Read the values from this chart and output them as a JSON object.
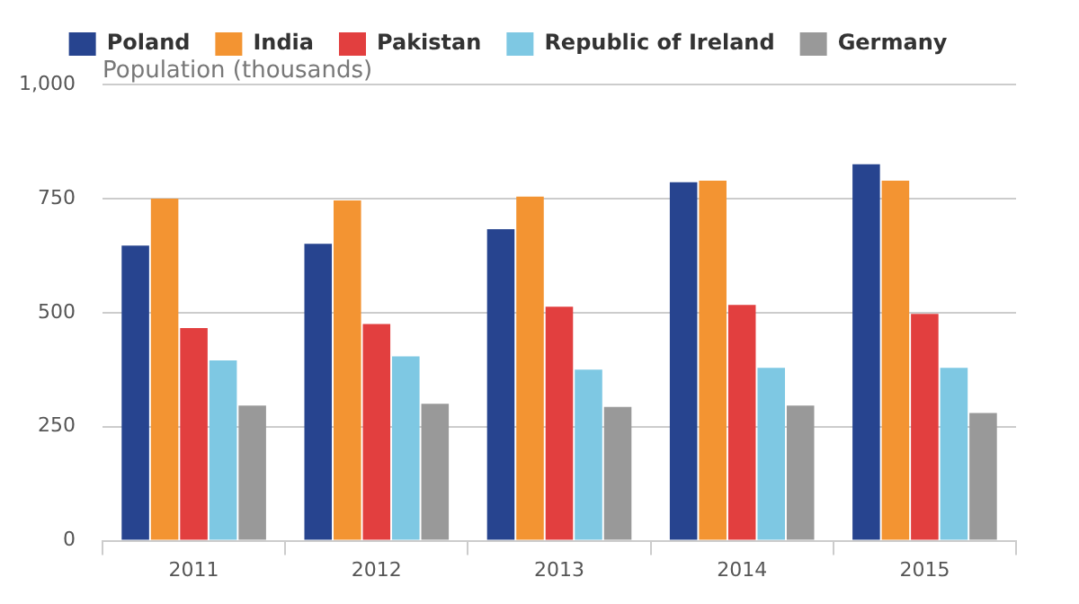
{
  "chart_data": {
    "type": "bar",
    "ylabel": "Population (thousands)",
    "categories": [
      "2011",
      "2012",
      "2013",
      "2014",
      "2015"
    ],
    "series": [
      {
        "name": "Poland",
        "color": "#27448f",
        "values": [
          647,
          651,
          683,
          786,
          825
        ]
      },
      {
        "name": "India",
        "color": "#f39432",
        "values": [
          750,
          746,
          754,
          789,
          789
        ]
      },
      {
        "name": "Pakistan",
        "color": "#e23f3f",
        "values": [
          466,
          475,
          513,
          517,
          497
        ]
      },
      {
        "name": "Republic of Ireland",
        "color": "#7ec8e3",
        "values": [
          395,
          404,
          375,
          379,
          379
        ]
      },
      {
        "name": "Germany",
        "color": "#999999",
        "values": [
          296,
          300,
          293,
          296,
          280
        ]
      }
    ],
    "ylim": [
      0,
      1000
    ],
    "yticks": [
      0,
      250,
      500,
      750,
      {
        "value": 1000,
        "label": "1,000"
      }
    ],
    "grid": "y",
    "legend": "top"
  }
}
